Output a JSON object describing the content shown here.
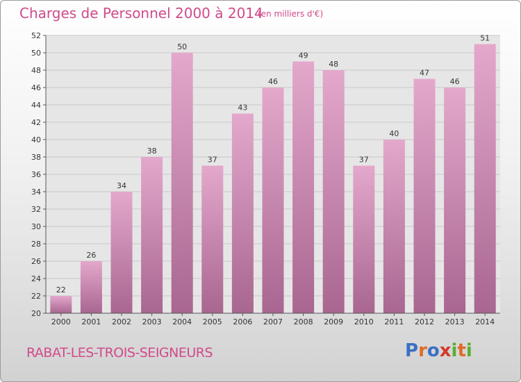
{
  "title": "Charges de Personnel 2000 à 2014",
  "unit_note": "(en milliers d'€)",
  "commune": "RABAT-LES-TROIS-SEIGNEURS",
  "logo": {
    "letters": [
      "P",
      "r",
      "o",
      "x",
      "i",
      "t",
      "i"
    ],
    "colors": [
      "#3b6fc4",
      "#e06a2a",
      "#3b6fc4",
      "#d23a2a",
      "#58b030",
      "#e06a2a",
      "#58b030"
    ]
  },
  "colors": {
    "accent": "#d04a8a",
    "bar_top": "#e4a8cc",
    "bar_bottom": "#a86690"
  },
  "chart_data": {
    "type": "bar",
    "title": "Charges de Personnel 2000 à 2014",
    "xlabel": "",
    "ylabel": "",
    "categories": [
      "2000",
      "2001",
      "2002",
      "2003",
      "2004",
      "2005",
      "2006",
      "2007",
      "2008",
      "2009",
      "2010",
      "2011",
      "2012",
      "2013",
      "2014"
    ],
    "values": [
      22,
      26,
      34,
      38,
      50,
      37,
      43,
      46,
      49,
      48,
      37,
      40,
      47,
      46,
      51
    ],
    "ylim": [
      20,
      52
    ],
    "yticks": [
      20,
      22,
      24,
      26,
      28,
      30,
      32,
      34,
      36,
      38,
      40,
      42,
      44,
      46,
      48,
      50,
      52
    ],
    "grid": true,
    "data_labels": true
  }
}
